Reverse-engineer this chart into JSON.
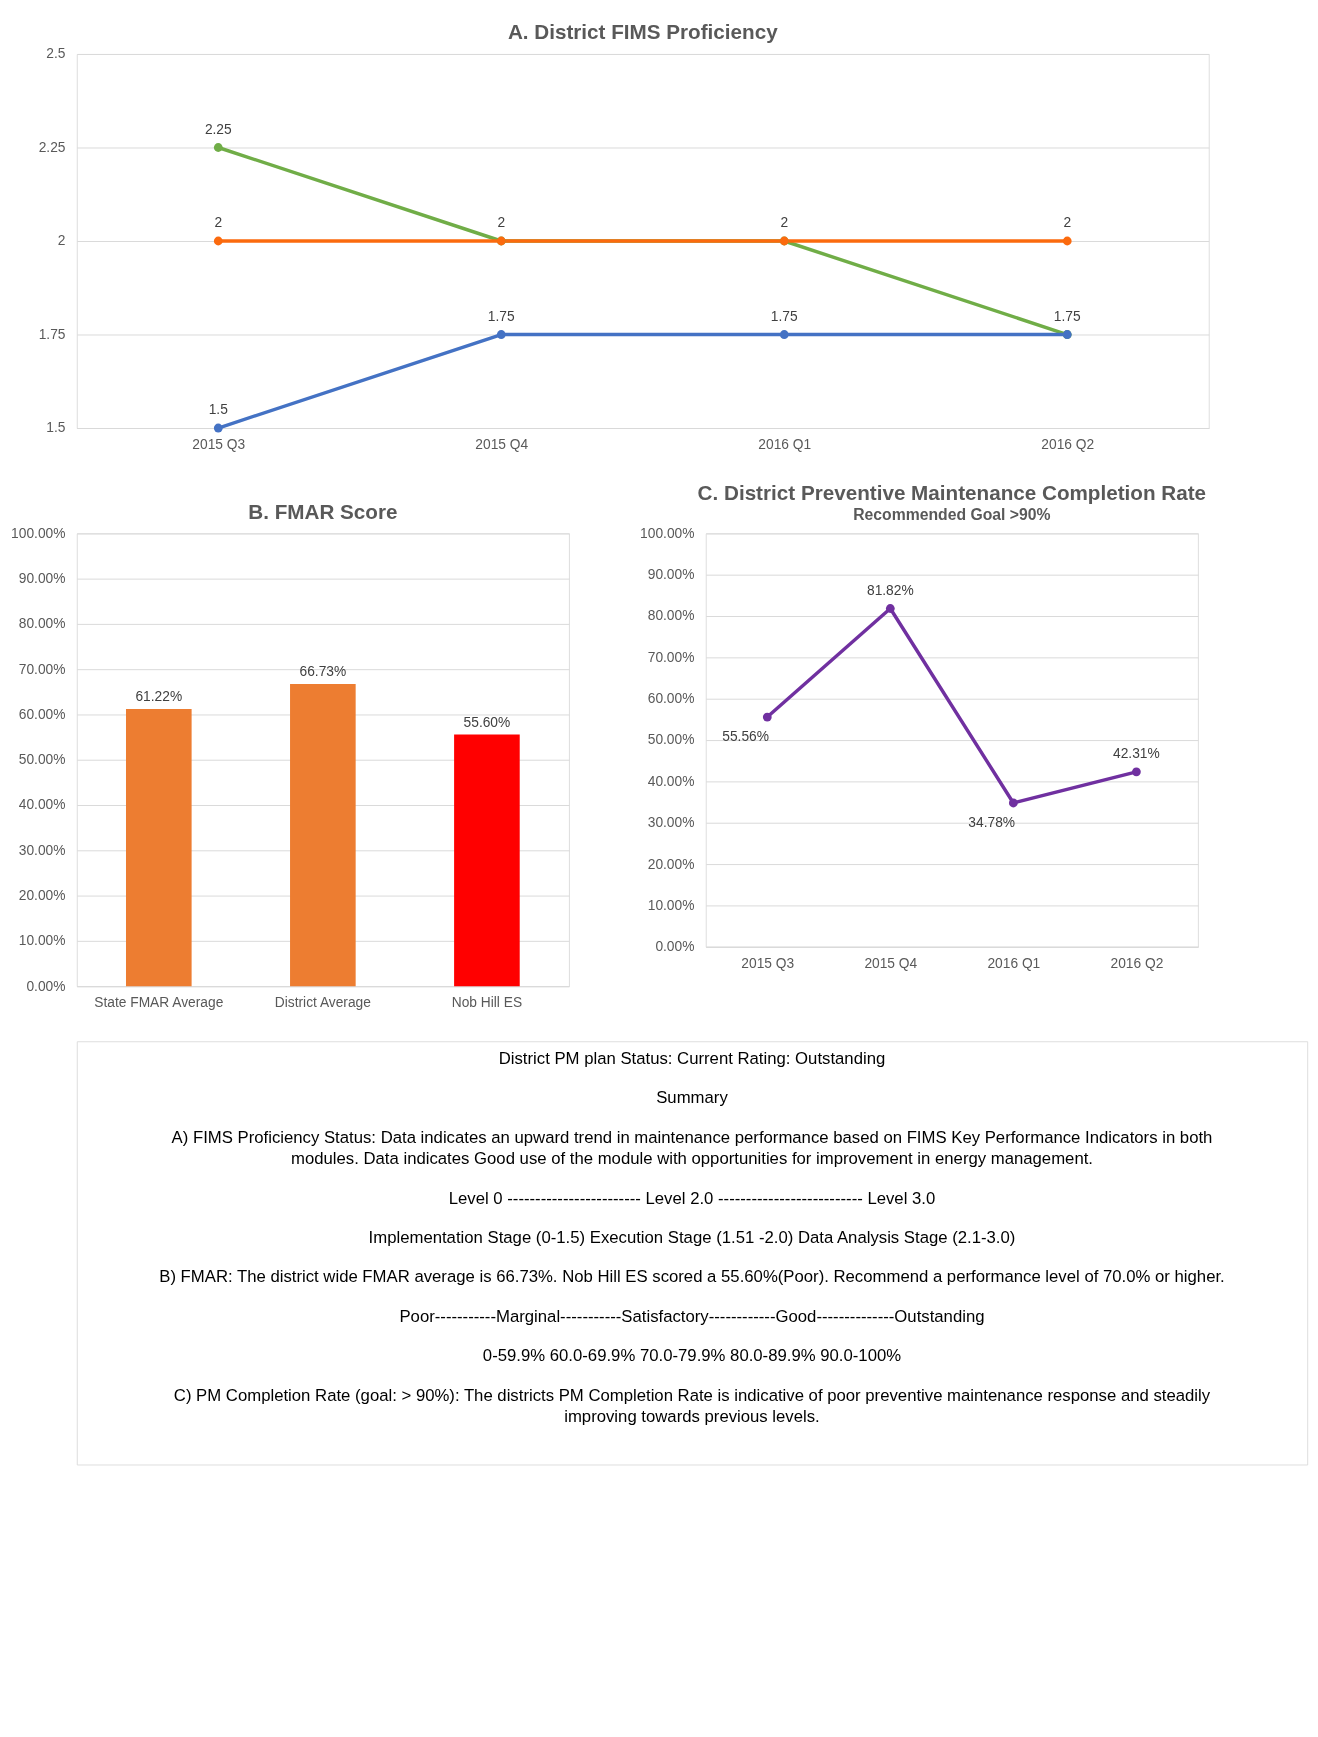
{
  "chart_data": [
    {
      "type": "line",
      "title": "A. District FIMS Proficiency",
      "categories": [
        "2015 Q3",
        "2015 Q4",
        "2016 Q1",
        "2016 Q2"
      ],
      "series": [
        {
          "color": "#70ad47",
          "values": [
            2.25,
            2,
            2,
            1.75
          ],
          "value_labels": [
            "2.25",
            null,
            null,
            null
          ]
        },
        {
          "color": "#4472c4",
          "values": [
            1.5,
            1.75,
            1.75,
            1.75
          ],
          "value_labels": [
            "1.5",
            "1.75",
            "1.75",
            "1.75"
          ]
        },
        {
          "color": "#fb6a0e",
          "values": [
            2,
            2,
            2,
            2
          ],
          "value_labels": [
            "2",
            "2",
            "2",
            "2"
          ]
        }
      ],
      "ylim": [
        1.5,
        2.5
      ],
      "yticks": [
        1.5,
        1.75,
        2,
        2.25,
        2.5
      ],
      "grid": "y",
      "marker": "circle",
      "line_style": "solid"
    },
    {
      "type": "bar",
      "title": "B. FMAR Score",
      "categories": [
        "State FMAR Average",
        "District Average",
        "Nob Hill ES"
      ],
      "values": [
        61.22,
        66.73,
        55.6
      ],
      "colors": [
        "#ed7d31",
        "#ed7d31",
        "#ff0000"
      ],
      "value_labels": [
        "61.22%",
        "66.73%",
        "55.60%"
      ],
      "ylim": [
        0,
        100
      ],
      "yticks": [
        {
          "value": 0,
          "label": "0.00%"
        },
        {
          "value": 10,
          "label": "10.00%"
        },
        {
          "value": 20,
          "label": "20.00%"
        },
        {
          "value": 30,
          "label": "30.00%"
        },
        {
          "value": 40,
          "label": "40.00%"
        },
        {
          "value": 50,
          "label": "50.00%"
        },
        {
          "value": 60,
          "label": "60.00%"
        },
        {
          "value": 70,
          "label": "70.00%"
        },
        {
          "value": 80,
          "label": "80.00%"
        },
        {
          "value": 90,
          "label": "90.00%"
        },
        {
          "value": 100,
          "label": "100.00%"
        }
      ],
      "grid": "y"
    },
    {
      "type": "line",
      "title": "C. District Preventive Maintenance Completion Rate",
      "subtitle": "Recommended Goal >90%",
      "categories": [
        "2015 Q3",
        "2015 Q4",
        "2016 Q1",
        "2016 Q2"
      ],
      "series": [
        {
          "color": "#7030a0",
          "values": [
            55.56,
            81.82,
            34.78,
            42.31
          ],
          "value_labels": [
            "55.56%",
            "81.82%",
            "34.78%",
            "42.31%"
          ]
        }
      ],
      "ylim": [
        0,
        100
      ],
      "yticks": [
        {
          "value": 0,
          "label": "0.00%"
        },
        {
          "value": 10,
          "label": "10.00%"
        },
        {
          "value": 20,
          "label": "20.00%"
        },
        {
          "value": 30,
          "label": "30.00%"
        },
        {
          "value": 40,
          "label": "40.00%"
        },
        {
          "value": 50,
          "label": "50.00%"
        },
        {
          "value": 60,
          "label": "60.00%"
        },
        {
          "value": 70,
          "label": "70.00%"
        },
        {
          "value": 80,
          "label": "80.00%"
        },
        {
          "value": 90,
          "label": "90.00%"
        },
        {
          "value": 100,
          "label": "100.00%"
        }
      ],
      "grid": "y",
      "marker": "circle",
      "line_style": "solid"
    },
    {
      "type": "other",
      "annotations": [
        "District PM plan Status: Current Rating: Outstanding",
        "Summary",
        "A) FIMS Proficiency Status: Data indicates an upward trend in maintenance performance based on FIMS Key Performance Indicators in both modules. Data indicates Good use of the module with opportunities for improvement in energy management.",
        "Level 0 ------------------------ Level 2.0 -------------------------- Level 3.0",
        "Implementation Stage (0-1.5)          Execution Stage (1.51 -2.0)          Data Analysis Stage (2.1-3.0)",
        "B) FMAR: The district wide FMAR average is 66.73%.  Nob Hill  ES scored a 55.60%(Poor).  Recommend a performance level of 70.0% or higher.",
        "Poor-----------Marginal-----------Satisfactory------------Good--------------Outstanding",
        "0-59.9%          60.0-69.9%          70.0-79.9%          80.0-89.9%          90.0-100%",
        "C) PM Completion Rate (goal: > 90%): The districts PM Completion Rate is indicative of poor preventive maintenance response and steadily improving  towards previous levels."
      ]
    }
  ]
}
